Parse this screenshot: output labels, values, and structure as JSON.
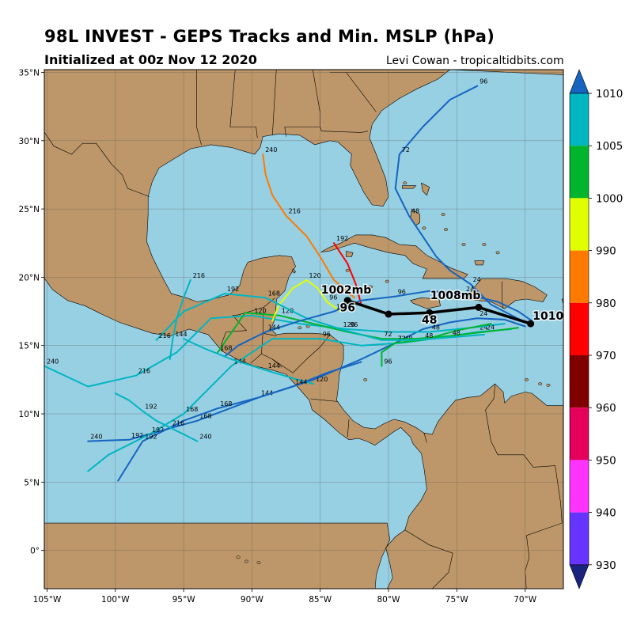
{
  "header": {
    "title": "98L INVEST - GEPS Tracks and Min. MSLP (hPa)",
    "subtitle": "Initialized at 00z Nov 12 2020",
    "credit": "Levi Cowan - tropicaltidbits.com"
  },
  "map": {
    "lat_labels": [
      "35°N",
      "30°N",
      "25°N",
      "20°N",
      "15°N",
      "10°N",
      "5°N",
      "0°"
    ],
    "lon_labels": [
      "105°W",
      "100°W",
      "95°W",
      "90°W",
      "85°W",
      "80°W",
      "75°W",
      "70°W"
    ],
    "lat_ticks": [
      35,
      30,
      25,
      20,
      15,
      10,
      5,
      0
    ],
    "lon_ticks": [
      -105,
      -100,
      -95,
      -90,
      -85,
      -80,
      -75,
      -70
    ],
    "extent": {
      "lon_min": -105.2,
      "lon_max": -67.2,
      "lat_min": -2.8,
      "lat_max": 35.2
    },
    "ocean_color": "#97cfe3",
    "land_color": "#bd9769"
  },
  "colorbar": {
    "labels": [
      "1010",
      "1005",
      "1000",
      "990",
      "980",
      "970",
      "960",
      "950",
      "940",
      "930"
    ],
    "colors": [
      "#00b6c1",
      "#00b52c",
      "#e0ff00",
      "#ff7a00",
      "#ff0000",
      "#800000",
      "#e5005c",
      "#ff33ff",
      "#6633ff"
    ],
    "top_arrow_color": "#1565c0",
    "bottom_arrow_color": "#1a237e"
  },
  "mean_track": {
    "points": [
      [
        -69.6,
        16.6
      ],
      [
        -73.4,
        17.8
      ],
      [
        -77.0,
        17.4
      ],
      [
        -80.0,
        17.3
      ],
      [
        -83.0,
        18.3
      ]
    ],
    "labels": [
      {
        "text": "1010mb",
        "lon": -67.6,
        "lat": 16.9
      },
      {
        "text": "1008mb",
        "lon": -75.1,
        "lat": 18.4
      },
      {
        "text": "1002mb",
        "lon": -83.1,
        "lat": 18.8
      },
      {
        "text": "48",
        "lon": -77.0,
        "lat": 16.6
      },
      {
        "text": "96",
        "lon": -83.0,
        "lat": 17.5
      }
    ]
  },
  "members": [
    {
      "color": "#1565c0",
      "lons": [
        -70.2,
        -72.5,
        -74.0,
        -75.5,
        -76.5,
        -77.5,
        -78.5,
        -79.5,
        -79.2,
        -77.5,
        -75.5,
        -73.5
      ],
      "lats": [
        16.8,
        18.0,
        19.5,
        20.5,
        21.5,
        23.0,
        24.5,
        26.5,
        29.0,
        31.0,
        33.0,
        34.0
      ],
      "hours": [
        {
          "t": "24",
          "i": 2
        },
        {
          "t": "48",
          "i": 6
        },
        {
          "t": "72",
          "i": 8
        },
        {
          "t": "96",
          "i": 11
        }
      ]
    },
    {
      "color": "#1565c0",
      "lons": [
        -70.0,
        -71.5,
        -73.5,
        -75.5,
        -77.5,
        -79.5,
        -82.0,
        -85.5,
        -89.5,
        -94.0,
        -99.0,
        -102.0
      ],
      "lats": [
        16.4,
        16.9,
        17.0,
        16.7,
        16.2,
        15.2,
        14.0,
        12.5,
        11.2,
        9.5,
        8.1,
        8.0
      ],
      "hours": [
        {
          "t": "24",
          "i": 2
        },
        {
          "t": "72",
          "i": 5
        },
        {
          "t": "144",
          "i": 8
        },
        {
          "t": "168",
          "i": 9
        },
        {
          "t": "192",
          "i": 10
        },
        {
          "t": "240",
          "i": 11
        }
      ]
    },
    {
      "color": "#00b6c1",
      "lons": [
        -71.0,
        -73.5,
        -76.0,
        -79.0,
        -82.0,
        -85.0,
        -88.5,
        -91.5,
        -93.5,
        -95.0,
        -97.5,
        -100.5,
        -102.0
      ],
      "lats": [
        16.2,
        16.0,
        15.6,
        15.2,
        15.0,
        15.5,
        15.5,
        13.5,
        11.5,
        10.0,
        8.5,
        7.0,
        5.8
      ],
      "hours": [
        {
          "t": "24",
          "i": 1
        },
        {
          "t": "48",
          "i": 3
        },
        {
          "t": "96",
          "i": 5
        },
        {
          "t": "144",
          "i": 7
        },
        {
          "t": "168",
          "i": 9
        },
        {
          "t": "192",
          "i": 10
        }
      ]
    },
    {
      "color": "#00b6c1",
      "lons": [
        -71.5,
        -74.0,
        -77.0,
        -80.0,
        -83.0,
        -86.5,
        -90.0,
        -93.0,
        -95.5,
        -98.5,
        -102.0,
        -105.2
      ],
      "lats": [
        16.6,
        16.3,
        16.0,
        16.0,
        16.2,
        16.6,
        17.2,
        17.0,
        14.5,
        12.8,
        12.0,
        13.5
      ],
      "hours": [
        {
          "t": "48",
          "i": 2
        },
        {
          "t": "96",
          "i": 4
        },
        {
          "t": "120",
          "i": 6
        },
        {
          "t": "216",
          "i": 9
        },
        {
          "t": "240",
          "i": 11
        }
      ]
    },
    {
      "color": "#00b52c",
      "lons": [
        -70.5,
        -73.0,
        -75.5,
        -78.0,
        -80.5,
        -83.0,
        -85.5,
        -88.0,
        -90.5,
        -92.5
      ],
      "lats": [
        16.3,
        16.0,
        15.7,
        15.5,
        15.5,
        16.0,
        16.6,
        17.2,
        17.4,
        14.5
      ],
      "hours": [
        {
          "t": "24",
          "i": 1
        },
        {
          "t": "72",
          "i": 4
        },
        {
          "t": "120",
          "i": 7
        },
        {
          "t": "168",
          "i": 9
        }
      ]
    },
    {
      "color": "#00b52c",
      "lons": [
        -72.5,
        -75.0,
        -77.5,
        -79.5,
        -80.5,
        -80.5
      ],
      "lats": [
        16.6,
        16.1,
        15.4,
        15.2,
        14.5,
        13.5
      ],
      "hours": [
        {
          "t": "48",
          "i": 2
        },
        {
          "t": "72",
          "i": 3
        },
        {
          "t": "96",
          "i": 5
        }
      ]
    },
    {
      "color": "#ff7a00",
      "lons": [
        -82.5,
        -84.0,
        -85.0,
        -86.0,
        -87.5,
        -88.5,
        -89.0,
        -89.2
      ],
      "lats": [
        18.5,
        19.8,
        21.5,
        23.0,
        24.5,
        26.0,
        27.5,
        29.0
      ],
      "hours": [
        {
          "t": "216",
          "i": 4
        },
        {
          "t": "240",
          "i": 7
        }
      ]
    },
    {
      "color": "#ff0000",
      "lons": [
        -82.0,
        -82.4,
        -83.0,
        -84.0
      ],
      "lats": [
        18.0,
        19.5,
        21.0,
        22.5
      ],
      "hours": [
        {
          "t": "192",
          "i": 3
        }
      ]
    },
    {
      "color": "#e0ff00",
      "lons": [
        -83.5,
        -84.5,
        -85.2,
        -86.0,
        -87.0,
        -88.0,
        -88.5
      ],
      "lats": [
        17.5,
        18.2,
        19.2,
        19.8,
        19.2,
        18.0,
        16.8
      ],
      "hours": [
        {
          "t": "96",
          "i": 1
        },
        {
          "t": "120",
          "i": 3
        }
      ]
    },
    {
      "color": "#00b6c1",
      "lons": [
        -73.0,
        -75.5,
        -78.0,
        -80.5,
        -83.5,
        -86.0,
        -89.0,
        -92.0,
        -95.0,
        -97.0
      ],
      "lats": [
        15.8,
        15.6,
        15.4,
        15.4,
        16.2,
        17.0,
        18.5,
        18.8,
        17.5,
        15.4
      ],
      "hours": [
        {
          "t": "48",
          "i": 1
        },
        {
          "t": "120",
          "i": 4
        },
        {
          "t": "168",
          "i": 6
        },
        {
          "t": "192",
          "i": 7
        },
        {
          "t": "216",
          "i": 9
        }
      ]
    },
    {
      "color": "#1565c0",
      "lons": [
        -69.5,
        -70.5,
        -72.0,
        -74.5,
        -77.0,
        -79.5,
        -82.0,
        -84.0,
        -86.5,
        -89.0,
        -91.0,
        -92.0
      ],
      "lats": [
        16.8,
        17.5,
        18.2,
        18.8,
        19.0,
        18.6,
        18.3,
        17.5,
        16.8,
        16.0,
        15.0,
        14.2
      ],
      "hours": [
        {
          "t": "24",
          "i": 3
        },
        {
          "t": "96",
          "i": 5
        },
        {
          "t": "120",
          "i": 7
        },
        {
          "t": "144",
          "i": 9
        }
      ]
    },
    {
      "color": "#00b6c1",
      "lons": [
        -85.5,
        -87.0,
        -89.0,
        -91.5,
        -93.5,
        -95.0
      ],
      "lats": [
        12.2,
        12.6,
        13.2,
        14.0,
        14.8,
        15.5
      ],
      "hours": [
        {
          "t": "120",
          "i": 0
        },
        {
          "t": "144",
          "i": 2
        }
      ]
    },
    {
      "color": "#1565c0",
      "lons": [
        -82.0,
        -84.5,
        -87.0,
        -89.5,
        -92.5,
        -95.0,
        -98.0,
        -99.8
      ],
      "lats": [
        13.8,
        13.0,
        12.0,
        11.2,
        10.4,
        9.5,
        8.0,
        5.1
      ],
      "hours": [
        {
          "t": "144",
          "i": 2
        },
        {
          "t": "168",
          "i": 4
        },
        {
          "t": "192",
          "i": 6
        }
      ]
    },
    {
      "color": "#00b6c1",
      "lons": [
        -94.5,
        -95.0,
        -95.5,
        -95.8,
        -96.0
      ],
      "lats": [
        19.8,
        18.5,
        17.0,
        15.5,
        14.0
      ],
      "hours": [
        {
          "t": "216",
          "i": 0
        },
        {
          "t": "144",
          "i": 3
        }
      ]
    },
    {
      "color": "#00b6c1",
      "lons": [
        -100.0,
        -99.0,
        -98.0,
        -97.0,
        -96.0,
        -95.0,
        -94.0
      ],
      "lats": [
        11.5,
        11.0,
        10.2,
        9.5,
        9.0,
        8.5,
        8.0
      ],
      "hours": [
        {
          "t": "192",
          "i": 2
        },
        {
          "t": "216",
          "i": 4
        },
        {
          "t": "240",
          "i": 6
        }
      ]
    }
  ]
}
